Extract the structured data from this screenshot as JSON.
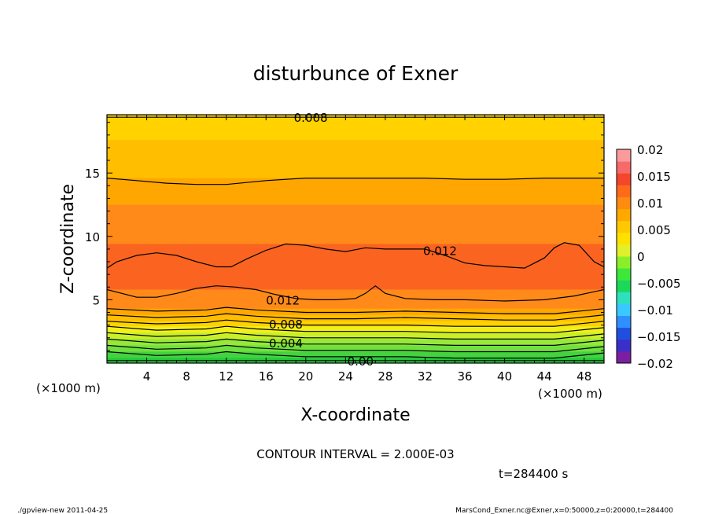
{
  "chart_data": {
    "type": "heatmap",
    "title": "disturbunce of Exner",
    "xlabel": "X-coordinate",
    "ylabel": "Z-coordinate",
    "x_unit": "(×1000 m)",
    "y_unit": "(×1000 m)",
    "xlim": [
      0,
      50
    ],
    "ylim": [
      0,
      19.6
    ],
    "x_ticks": [
      4,
      8,
      12,
      16,
      20,
      24,
      28,
      32,
      36,
      40,
      44,
      48
    ],
    "y_ticks": [
      5,
      10,
      15
    ],
    "contour_interval_text": "CONTOUR INTERVAL = 2.000E-03",
    "time_text": "t=284400 s",
    "color_levels": [
      -0.02,
      -0.015,
      -0.01,
      -0.005,
      0,
      0.005,
      0.01,
      0.015,
      0.02
    ],
    "colorbar_labels": [
      "0.02",
      "0.015",
      "0.01",
      "0.005",
      "0",
      "−0.005",
      "−0.01",
      "−0.015",
      "−0.02"
    ],
    "colorbar_colors": [
      "#7a1fa2",
      "#3a2fc8",
      "#1f4fe0",
      "#2f8fff",
      "#39c8ff",
      "#2fe0c0",
      "#1cd85a",
      "#3ce83a",
      "#8aef2a",
      "#e0f02a",
      "#ffe100",
      "#ffc800",
      "#ffa800",
      "#ff8c10",
      "#ff6a1a",
      "#f5452a",
      "#f76a6a",
      "#fb9a9a"
    ],
    "bands": [
      {
        "z_top": 19.6,
        "color": "#ffd200"
      },
      {
        "z_top": 17.6,
        "color": "#ffbe00"
      },
      {
        "z_top": 14.6,
        "color": "#ffa700"
      },
      {
        "z_top": 12.5,
        "color": "#ff8a1a"
      },
      {
        "z_top": 9.4,
        "color": "#fa6420"
      },
      {
        "z_top": 5.8,
        "color": "#ff8a1a"
      },
      {
        "z_top": 4.3,
        "color": "#ffa700"
      },
      {
        "z_top": 3.8,
        "color": "#ffbe00"
      },
      {
        "z_top": 3.3,
        "color": "#ffd200"
      },
      {
        "z_top": 2.9,
        "color": "#f2ef1a"
      },
      {
        "z_top": 2.4,
        "color": "#c8ef2a"
      },
      {
        "z_top": 1.9,
        "color": "#96e83a"
      },
      {
        "z_top": 1.4,
        "color": "#6fe03f"
      },
      {
        "z_top": 0.9,
        "color": "#44d23f"
      },
      {
        "z_top": 0.4,
        "color": "#22c83a"
      }
    ],
    "contours": [
      {
        "value": "0.008",
        "x": [
          0,
          10,
          20,
          30,
          40,
          50
        ],
        "z": [
          19.4,
          19.4,
          19.4,
          19.4,
          19.4,
          19.4
        ]
      },
      {
        "value": "",
        "x": [
          0,
          3,
          6,
          9,
          12,
          16,
          20,
          24,
          28,
          32,
          36,
          40,
          44,
          48,
          50
        ],
        "z": [
          14.6,
          14.4,
          14.2,
          14.1,
          14.1,
          14.4,
          14.6,
          14.6,
          14.6,
          14.6,
          14.5,
          14.5,
          14.6,
          14.6,
          14.6
        ]
      },
      {
        "value": "0.012",
        "x": [
          0,
          1,
          3,
          5,
          7,
          9,
          11,
          12.5,
          14,
          16,
          18,
          20,
          22,
          24,
          26,
          28,
          30,
          32,
          34,
          36,
          38,
          40,
          42,
          44,
          45,
          46,
          47.5,
          49,
          50
        ],
        "z": [
          7.5,
          8.0,
          8.5,
          8.7,
          8.5,
          8.0,
          7.6,
          7.6,
          8.2,
          8.9,
          9.4,
          9.3,
          9.0,
          8.8,
          9.1,
          9.0,
          9.0,
          9.0,
          8.5,
          7.9,
          7.7,
          7.6,
          7.5,
          8.3,
          9.1,
          9.5,
          9.3,
          8.0,
          7.6
        ]
      },
      {
        "value": "0.012",
        "x": [
          0,
          2,
          3,
          5,
          7,
          9,
          11,
          13,
          15,
          17,
          19,
          21,
          23,
          25,
          26,
          27,
          28,
          30,
          33,
          36,
          40,
          44,
          47,
          50
        ],
        "z": [
          5.8,
          5.4,
          5.2,
          5.2,
          5.5,
          5.9,
          6.1,
          6.0,
          5.8,
          5.4,
          5.1,
          5.0,
          5.0,
          5.1,
          5.5,
          6.1,
          5.5,
          5.1,
          5.0,
          5.0,
          4.9,
          5.0,
          5.3,
          5.8
        ]
      },
      {
        "value": "",
        "x": [
          0,
          5,
          10,
          12,
          15,
          20,
          25,
          30,
          35,
          40,
          45,
          50
        ],
        "z": [
          4.3,
          4.1,
          4.2,
          4.4,
          4.2,
          4.0,
          4.0,
          4.1,
          4.0,
          3.9,
          3.9,
          4.3
        ]
      },
      {
        "value": "",
        "x": [
          0,
          5,
          10,
          12,
          15,
          20,
          25,
          30,
          35,
          40,
          45,
          50
        ],
        "z": [
          3.8,
          3.6,
          3.7,
          3.9,
          3.7,
          3.5,
          3.5,
          3.6,
          3.5,
          3.4,
          3.4,
          3.8
        ]
      },
      {
        "value": "0.008",
        "x": [
          0,
          5,
          10,
          12,
          15,
          20,
          25,
          30,
          35,
          40,
          45,
          50
        ],
        "z": [
          3.3,
          3.1,
          3.2,
          3.4,
          3.2,
          3.0,
          3.0,
          3.0,
          2.9,
          2.9,
          2.9,
          3.3
        ]
      },
      {
        "value": "",
        "x": [
          0,
          5,
          10,
          12,
          15,
          20,
          25,
          30,
          35,
          40,
          45,
          50
        ],
        "z": [
          2.9,
          2.6,
          2.7,
          2.9,
          2.7,
          2.5,
          2.5,
          2.5,
          2.4,
          2.4,
          2.4,
          2.8
        ]
      },
      {
        "value": "",
        "x": [
          0,
          5,
          10,
          12,
          15,
          20,
          25,
          30,
          35,
          40,
          45,
          50
        ],
        "z": [
          2.4,
          2.1,
          2.2,
          2.4,
          2.2,
          2.0,
          2.0,
          2.0,
          1.9,
          1.9,
          1.9,
          2.3
        ]
      },
      {
        "value": "0.004",
        "x": [
          0,
          5,
          10,
          12,
          15,
          20,
          25,
          30,
          35,
          40,
          45,
          50
        ],
        "z": [
          1.9,
          1.6,
          1.7,
          1.9,
          1.7,
          1.5,
          1.5,
          1.5,
          1.4,
          1.4,
          1.4,
          1.8
        ]
      },
      {
        "value": "",
        "x": [
          0,
          5,
          10,
          12,
          15,
          20,
          25,
          30,
          35,
          40,
          45,
          50
        ],
        "z": [
          1.4,
          1.1,
          1.2,
          1.4,
          1.2,
          1.0,
          1.0,
          1.0,
          0.9,
          0.9,
          0.9,
          1.3
        ]
      },
      {
        "value": "",
        "x": [
          0,
          5,
          10,
          12,
          15,
          20,
          25,
          30,
          35,
          40,
          45,
          50
        ],
        "z": [
          0.9,
          0.6,
          0.7,
          0.9,
          0.7,
          0.5,
          0.5,
          0.5,
          0.4,
          0.4,
          0.4,
          0.8
        ]
      },
      {
        "value": "0.00",
        "x": [
          0,
          10,
          20,
          30,
          40,
          50
        ],
        "z": [
          0.2,
          0.2,
          0.2,
          0.2,
          0.2,
          0.2
        ]
      }
    ],
    "contour_labels": [
      {
        "text": "0.008",
        "x": 20.5,
        "z": 19.4
      },
      {
        "text": "0.012",
        "x": 33.5,
        "z": 8.9
      },
      {
        "text": "0.012",
        "x": 17.7,
        "z": 5.0
      },
      {
        "text": "0.008",
        "x": 18.0,
        "z": 3.1
      },
      {
        "text": "0.004",
        "x": 18.0,
        "z": 1.6
      },
      {
        "text": "0.00",
        "x": 25.5,
        "z": 0.2
      }
    ]
  },
  "footer": {
    "left": "./gpview-new   2011-04-25",
    "right": "MarsCond_Exner.nc@Exner,x=0:50000,z=0:20000,t=284400"
  }
}
